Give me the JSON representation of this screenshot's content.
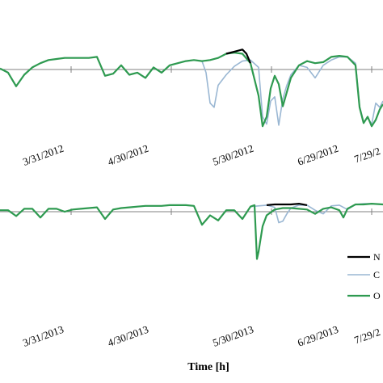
{
  "chart_data": {
    "type": "line",
    "xlabel": "Time [h]",
    "legend": {
      "placement": "right",
      "entries": [
        {
          "label": "N",
          "color": "#000000"
        },
        {
          "label": "C",
          "color": "#9ab7d3"
        },
        {
          "label": "O",
          "color": "#2e9a50"
        }
      ]
    },
    "panels": [
      {
        "year": 2012,
        "tick_labels": [
          "3/31/2012",
          "4/30/2012",
          "5/30/2012",
          "6/29/2012",
          "7/29/2"
        ],
        "reference_line": true,
        "series": [
          {
            "name": "C",
            "color": "#9ab7d3",
            "x": [
              0,
              10,
              20,
              30,
              40,
              50,
              60,
              70,
              80,
              90,
              100,
              110,
              120,
              130,
              140,
              150,
              160,
              170,
              180,
              190,
              200,
              210,
              220,
              230,
              240,
              250,
              255,
              260,
              265,
              270,
              280,
              290,
              300,
              310,
              320,
              325,
              330,
              335,
              340,
              345,
              350,
              355,
              360,
              370,
              380,
              390,
              400,
              410,
              420,
              430,
              440,
              445,
              450,
              455,
              460,
              465,
              470,
              474
            ],
            "y": [
              0.1,
              -0.3,
              -1.6,
              -0.5,
              0.2,
              0.6,
              0.9,
              1.0,
              1.1,
              1.1,
              1.1,
              1.1,
              1.2,
              -0.6,
              -0.4,
              0.4,
              -0.5,
              -0.3,
              -0.8,
              0.2,
              -0.3,
              0.4,
              0.6,
              0.8,
              0.9,
              0.8,
              -0.3,
              -3.2,
              -3.6,
              -1.5,
              -0.5,
              0.3,
              0.8,
              0.9,
              0.2,
              -4.5,
              -5.2,
              -3.0,
              -2.6,
              -5.3,
              -2.8,
              -1.5,
              -0.5,
              0.4,
              0.2,
              -0.8,
              0.4,
              0.9,
              1.2,
              1.2,
              0.6,
              -3.5,
              -5.0,
              -4.6,
              -5.2,
              -3.2,
              -3.6,
              -3.0
            ]
          },
          {
            "name": "O",
            "color": "#2e9a50",
            "x": [
              0,
              10,
              20,
              30,
              40,
              50,
              60,
              70,
              80,
              90,
              100,
              110,
              120,
              130,
              140,
              150,
              160,
              170,
              180,
              190,
              200,
              210,
              220,
              230,
              240,
              250,
              260,
              270,
              280,
              290,
              300,
              310,
              320,
              325,
              330,
              335,
              340,
              345,
              350,
              360,
              370,
              380,
              390,
              400,
              410,
              420,
              430,
              440,
              445,
              450,
              455,
              460,
              465,
              470,
              474
            ],
            "y": [
              0.1,
              -0.3,
              -1.6,
              -0.5,
              0.2,
              0.6,
              0.9,
              1.0,
              1.1,
              1.1,
              1.1,
              1.1,
              1.2,
              -0.6,
              -0.4,
              0.4,
              -0.5,
              -0.3,
              -0.8,
              0.2,
              -0.3,
              0.4,
              0.6,
              0.8,
              0.9,
              0.8,
              0.9,
              1.1,
              1.5,
              1.6,
              1.5,
              0.6,
              -2.5,
              -5.4,
              -4.5,
              -1.8,
              -0.6,
              -1.4,
              -3.5,
              -0.8,
              0.4,
              0.8,
              0.6,
              0.7,
              1.2,
              1.3,
              1.2,
              0.4,
              -3.6,
              -5.1,
              -4.5,
              -5.4,
              -4.8,
              -3.8,
              -3.3
            ]
          },
          {
            "name": "N",
            "color": "#000000",
            "x": [
              280,
              290,
              300,
              305,
              310
            ],
            "y": [
              1.5,
              1.7,
              1.9,
              1.5,
              0.6
            ]
          }
        ]
      },
      {
        "year": 2013,
        "tick_labels": [
          "3/31/2013",
          "4/30/2013",
          "5/30/2013",
          "6/29/2013",
          "7/29/2"
        ],
        "reference_line": true,
        "series": [
          {
            "name": "C",
            "color": "#9ab7d3",
            "x": [
              0,
              10,
              20,
              30,
              40,
              50,
              60,
              70,
              80,
              90,
              100,
              110,
              120,
              130,
              140,
              150,
              160,
              170,
              180,
              190,
              200,
              210,
              220,
              230,
              240,
              250,
              260,
              270,
              280,
              290,
              300,
              310,
              320,
              330,
              340,
              345,
              350,
              355,
              360,
              370,
              380,
              390,
              400,
              410,
              420,
              430,
              440,
              450,
              460,
              474
            ],
            "y": [
              0.2,
              0.2,
              -0.6,
              0.4,
              0.4,
              -0.8,
              0.4,
              0.4,
              0.0,
              0.3,
              0.4,
              0.5,
              0.6,
              -1.0,
              0.3,
              0.5,
              0.6,
              0.7,
              0.8,
              0.8,
              0.8,
              0.9,
              0.9,
              0.9,
              0.8,
              -1.8,
              -0.5,
              -1.2,
              0.2,
              0.2,
              -1.0,
              0.7,
              0.8,
              0.9,
              0.6,
              -1.5,
              -1.3,
              -0.3,
              0.5,
              0.9,
              0.9,
              0.2,
              -0.3,
              0.8,
              0.9,
              0.3,
              1.0,
              1.1,
              1.1,
              1.0
            ]
          },
          {
            "name": "O",
            "color": "#2e9a50",
            "x": [
              0,
              10,
              20,
              30,
              40,
              50,
              60,
              70,
              80,
              90,
              100,
              110,
              120,
              130,
              140,
              150,
              160,
              170,
              180,
              190,
              200,
              210,
              220,
              230,
              240,
              250,
              260,
              270,
              280,
              290,
              300,
              310,
              315,
              318,
              320,
              325,
              330,
              340,
              350,
              360,
              370,
              380,
              390,
              400,
              410,
              420,
              425,
              430,
              440,
              450,
              460,
              474
            ],
            "y": [
              0.2,
              0.2,
              -0.6,
              0.4,
              0.4,
              -0.8,
              0.4,
              0.4,
              0.0,
              0.3,
              0.4,
              0.5,
              0.6,
              -1.0,
              0.3,
              0.5,
              0.6,
              0.7,
              0.8,
              0.8,
              0.8,
              0.9,
              0.9,
              0.9,
              0.8,
              -1.8,
              -0.5,
              -1.2,
              0.2,
              0.2,
              -1.0,
              0.7,
              0.9,
              -6.5,
              -5.5,
              -2.0,
              -0.5,
              0.3,
              0.5,
              0.5,
              0.4,
              0.3,
              -0.3,
              0.4,
              0.6,
              0.2,
              -0.8,
              0.4,
              1.0,
              1.0,
              1.1,
              1.0
            ]
          },
          {
            "name": "N",
            "color": "#000000",
            "x": [
              330,
              340,
              350,
              360,
              370,
              380
            ],
            "y": [
              0.9,
              1.0,
              1.0,
              1.0,
              1.1,
              0.9
            ]
          }
        ]
      }
    ]
  }
}
